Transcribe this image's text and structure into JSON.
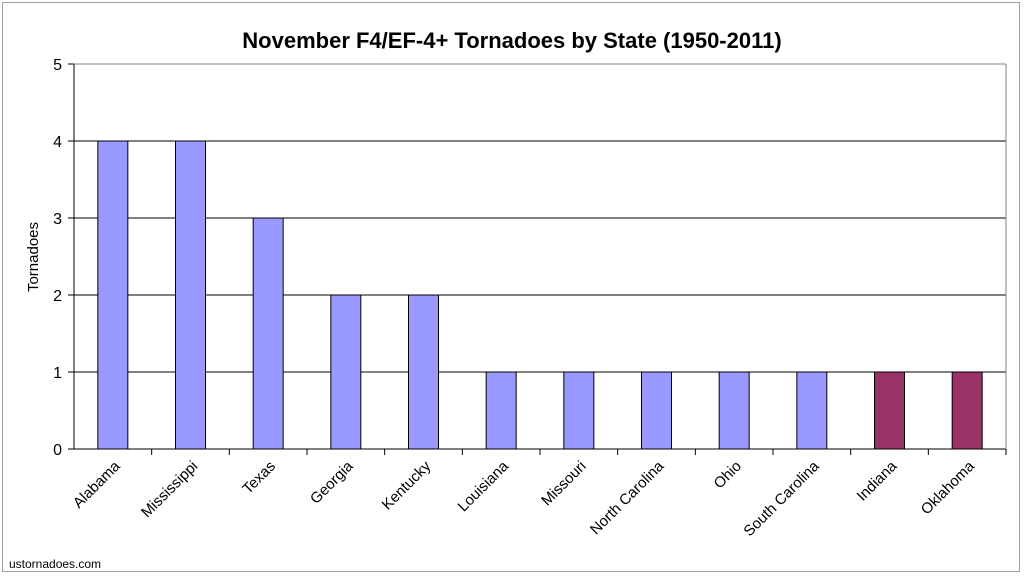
{
  "chart_data": {
    "type": "bar",
    "title": "November F4/EF-4+ Tornadoes by State (1950-2011)",
    "xlabel": "",
    "ylabel": "Tornadoes",
    "ylim": [
      0,
      5
    ],
    "yticks": [
      0,
      1,
      2,
      3,
      4,
      5
    ],
    "grid": true,
    "categories": [
      "Alabama",
      "Mississippi",
      "Texas",
      "Georgia",
      "Kentucky",
      "Louisiana",
      "Missouri",
      "North Carolina",
      "Ohio",
      "South Carolina",
      "Indiana",
      "Oklahoma"
    ],
    "values": [
      4,
      4,
      3,
      2,
      2,
      1,
      1,
      1,
      1,
      1,
      1,
      1
    ],
    "bar_colors": [
      "#9999ff",
      "#9999ff",
      "#9999ff",
      "#9999ff",
      "#9999ff",
      "#9999ff",
      "#9999ff",
      "#9999ff",
      "#9999ff",
      "#9999ff",
      "#993366",
      "#993366"
    ]
  },
  "credit": "ustornadoes.com"
}
